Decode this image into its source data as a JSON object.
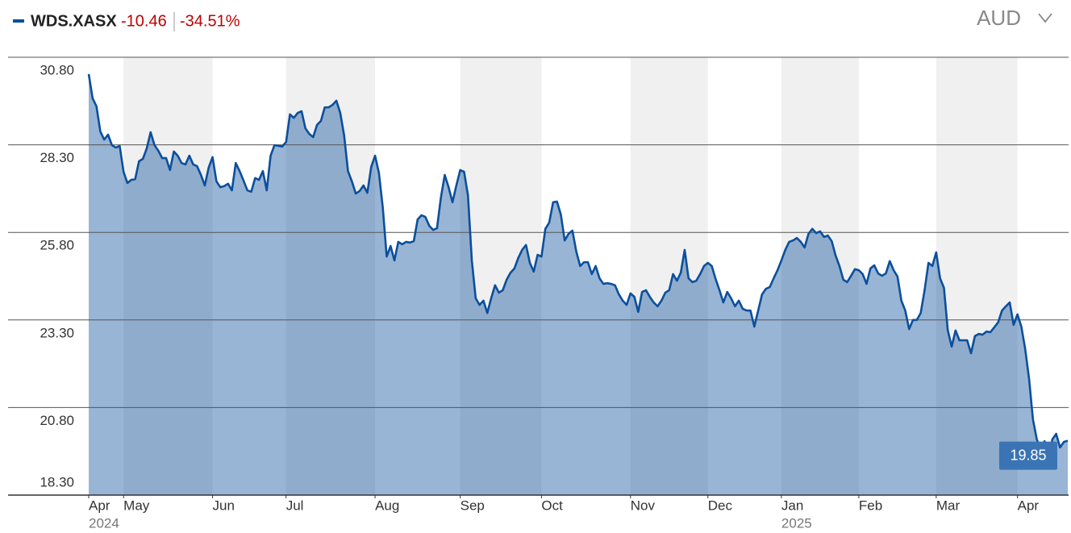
{
  "header": {
    "ticker": "WDS.XASX",
    "change": "-10.46",
    "change_pct": "-34.51%",
    "currency": "AUD"
  },
  "chart_data": {
    "type": "area",
    "color": "#0b4f9c",
    "grid": true,
    "ylim": [
      18.3,
      30.8
    ],
    "yticks": [
      {
        "value": 18.3,
        "label": "18.30"
      },
      {
        "value": 20.8,
        "label": "20.80"
      },
      {
        "value": 23.3,
        "label": "23.30"
      },
      {
        "value": 25.8,
        "label": "25.80"
      },
      {
        "value": 28.3,
        "label": "28.30"
      },
      {
        "value": 30.8,
        "label": "30.80"
      }
    ],
    "categories": [
      "Apr",
      null,
      null,
      null,
      null,
      null,
      null,
      null,
      null,
      "May",
      null,
      null,
      null,
      null,
      null,
      null,
      null,
      null,
      null,
      null,
      null,
      null,
      null,
      null,
      null,
      null,
      null,
      null,
      null,
      null,
      null,
      null,
      "Jun",
      null,
      null,
      null,
      null,
      null,
      null,
      null,
      null,
      null,
      null,
      null,
      null,
      null,
      null,
      null,
      null,
      null,
      null,
      "Jul",
      null,
      null,
      null,
      null,
      null,
      null,
      null,
      null,
      null,
      null,
      null,
      null,
      null,
      null,
      null,
      null,
      null,
      null,
      null,
      null,
      null,
      null,
      "Aug",
      null,
      null,
      null,
      null,
      null,
      null,
      null,
      null,
      null,
      null,
      null,
      null,
      null,
      null,
      null,
      null,
      null,
      null,
      null,
      null,
      null,
      "Sep",
      null,
      null,
      null,
      null,
      null,
      null,
      null,
      null,
      null,
      null,
      null,
      null,
      null,
      null,
      null,
      null,
      null,
      null,
      null,
      null,
      "Oct",
      null,
      null,
      null,
      null,
      null,
      null,
      null,
      null,
      null,
      null,
      null,
      null,
      null,
      null,
      null,
      null,
      null,
      null,
      null,
      null,
      null,
      null,
      "Nov",
      null,
      null,
      null,
      null,
      null,
      null,
      null,
      null,
      null,
      null,
      null,
      null,
      null,
      null,
      null,
      null,
      null,
      null,
      null,
      "Dec",
      null,
      null,
      null,
      null,
      null,
      null,
      null,
      null,
      null,
      null,
      null,
      null,
      null,
      null,
      null,
      null,
      null,
      null,
      "Jan",
      null,
      null,
      null,
      null,
      null,
      null,
      null,
      null,
      null,
      null,
      null,
      null,
      null,
      null,
      null,
      null,
      null,
      null,
      null,
      "Feb",
      null,
      null,
      null,
      null,
      null,
      null,
      null,
      null,
      null,
      null,
      null,
      null,
      null,
      null,
      null,
      null,
      null,
      null,
      null,
      "Mar",
      null,
      null,
      null,
      null,
      null,
      null,
      null,
      null,
      null,
      null,
      null,
      null,
      null,
      null,
      null,
      null,
      null,
      null,
      null,
      null,
      "Apr",
      null,
      null,
      null,
      null,
      null,
      null,
      null,
      null,
      null,
      null,
      null,
      null,
      null
    ],
    "years": [
      "2024",
      null,
      null,
      null,
      null,
      null,
      null,
      null,
      null,
      null,
      null,
      null,
      null,
      null,
      null,
      null,
      null,
      null,
      null,
      null,
      null,
      null,
      null,
      null,
      null,
      null,
      null,
      null,
      null,
      null,
      null,
      null,
      null,
      null,
      null,
      null,
      null,
      null,
      null,
      null,
      null,
      null,
      null,
      null,
      null,
      null,
      null,
      null,
      null,
      null,
      null,
      null,
      null,
      null,
      null,
      null,
      null,
      null,
      null,
      null,
      null,
      null,
      null,
      null,
      null,
      null,
      null,
      null,
      null,
      null,
      null,
      null,
      null,
      null,
      null,
      null,
      null,
      null,
      null,
      null,
      null,
      null,
      null,
      null,
      null,
      null,
      null,
      null,
      null,
      null,
      null,
      null,
      null,
      null,
      null,
      null,
      null,
      null,
      null,
      null,
      null,
      null,
      null,
      null,
      null,
      null,
      null,
      null,
      null,
      null,
      null,
      null,
      null,
      null,
      null,
      null,
      null,
      null,
      null,
      null,
      null,
      null,
      null,
      null,
      null,
      null,
      null,
      null,
      null,
      null,
      null,
      null,
      null,
      null,
      null,
      null,
      null,
      null,
      null,
      null,
      null,
      null,
      null,
      null,
      null,
      null,
      null,
      null,
      null,
      null,
      null,
      null,
      null,
      null,
      null,
      null,
      null,
      null,
      null,
      null,
      null,
      null,
      null,
      null,
      null,
      null,
      null,
      null,
      null,
      null,
      null,
      null,
      null,
      null,
      null,
      null,
      null,
      null,
      null,
      "2025",
      null,
      null,
      null,
      null,
      null,
      null,
      null,
      null,
      null,
      null,
      null,
      null,
      null,
      null,
      null,
      null,
      null,
      null,
      null,
      null,
      null,
      null,
      null,
      null,
      null,
      null,
      null,
      null,
      null,
      null,
      null,
      null,
      null,
      null,
      null,
      null,
      null,
      null,
      null,
      null,
      null,
      null,
      null,
      null,
      null,
      null,
      null,
      null,
      null,
      null,
      null,
      null,
      null,
      null,
      null,
      null,
      null,
      null,
      null,
      null,
      null,
      null,
      null,
      null,
      null,
      null,
      null,
      null,
      null,
      null,
      null,
      null,
      null,
      null
    ],
    "values": [
      30.32,
      29.63,
      29.4,
      28.68,
      28.45,
      28.59,
      28.29,
      28.22,
      28.27,
      27.53,
      27.21,
      27.3,
      27.32,
      27.83,
      27.9,
      28.2,
      28.66,
      28.29,
      28.13,
      27.92,
      27.92,
      27.58,
      28.11,
      27.99,
      27.78,
      27.74,
      27.99,
      27.74,
      27.69,
      27.44,
      27.14,
      27.65,
      27.95,
      27.26,
      27.09,
      27.12,
      27.19,
      27.0,
      27.78,
      27.55,
      27.28,
      27.0,
      26.96,
      27.35,
      27.3,
      27.55,
      27.0,
      27.99,
      28.29,
      28.27,
      28.25,
      28.38,
      29.17,
      29.07,
      29.21,
      29.26,
      28.77,
      28.61,
      28.52,
      28.87,
      28.98,
      29.37,
      29.37,
      29.44,
      29.56,
      29.21,
      28.57,
      27.55,
      27.26,
      26.91,
      26.98,
      27.14,
      26.93,
      27.67,
      27.99,
      27.49,
      26.5,
      25.11,
      25.41,
      25.0,
      25.53,
      25.46,
      25.53,
      25.51,
      25.55,
      26.17,
      26.29,
      26.24,
      25.99,
      25.87,
      25.92,
      26.79,
      27.44,
      27.09,
      26.66,
      27.14,
      27.58,
      27.53,
      26.86,
      25.0,
      23.92,
      23.73,
      23.85,
      23.5,
      23.92,
      24.29,
      24.08,
      24.15,
      24.45,
      24.65,
      24.77,
      25.07,
      25.3,
      25.44,
      24.93,
      24.68,
      25.16,
      25.11,
      25.9,
      26.08,
      26.66,
      26.68,
      26.31,
      25.57,
      25.76,
      25.85,
      25.25,
      24.84,
      24.95,
      24.95,
      24.61,
      24.84,
      24.49,
      24.33,
      24.35,
      24.33,
      24.29,
      24.03,
      23.85,
      23.73,
      24.06,
      23.96,
      23.53,
      24.1,
      24.15,
      23.96,
      23.8,
      23.69,
      23.85,
      24.08,
      24.15,
      24.61,
      24.42,
      24.65,
      25.3,
      24.49,
      24.38,
      24.42,
      24.61,
      24.84,
      24.93,
      24.84,
      24.47,
      24.15,
      23.8,
      24.1,
      23.92,
      23.69,
      23.85,
      23.62,
      23.57,
      23.57,
      23.11,
      23.57,
      24.03,
      24.19,
      24.24,
      24.49,
      24.72,
      25.0,
      25.3,
      25.53,
      25.57,
      25.64,
      25.53,
      25.37,
      25.76,
      25.9,
      25.78,
      25.83,
      25.67,
      25.71,
      25.55,
      25.14,
      24.84,
      24.45,
      24.38,
      24.56,
      24.75,
      24.72,
      24.61,
      24.33,
      24.77,
      24.86,
      24.63,
      24.56,
      24.63,
      24.98,
      24.72,
      24.54,
      23.85,
      23.57,
      23.04,
      23.3,
      23.3,
      23.5,
      24.15,
      24.93,
      24.84,
      25.23,
      24.49,
      24.22,
      23.0,
      22.54,
      23.0,
      22.72,
      22.72,
      22.72,
      22.35,
      22.84,
      22.9,
      22.88,
      22.97,
      22.95,
      23.09,
      23.23,
      23.57,
      23.69,
      23.8,
      23.16,
      23.46,
      23.11,
      22.47,
      21.62,
      20.46,
      19.89,
      19.61,
      19.84,
      19.15,
      19.89,
      20.05,
      19.66,
      19.82,
      19.85
    ],
    "value_labels": [
      null,
      null,
      null,
      null,
      null,
      null,
      null,
      null,
      null,
      null,
      null,
      null,
      null,
      null,
      null,
      null,
      null,
      null,
      null,
      null,
      null,
      null,
      null,
      null,
      null,
      null,
      null,
      null,
      null,
      null,
      null,
      null,
      null,
      null,
      null,
      null,
      null,
      null,
      null,
      null,
      null,
      null,
      null,
      null,
      null,
      null,
      null,
      null,
      null,
      null,
      null,
      null,
      null,
      null,
      null,
      null,
      null,
      null,
      null,
      null,
      null,
      null,
      null,
      null,
      null,
      null,
      null,
      null,
      null,
      null,
      null,
      null,
      null,
      null,
      null,
      null,
      null,
      null,
      null,
      null,
      null,
      null,
      null,
      null,
      null,
      null,
      null,
      null,
      null,
      null,
      null,
      null,
      null,
      null,
      null,
      null,
      null,
      null,
      null,
      null,
      null,
      null,
      null,
      null,
      null,
      null,
      null,
      null,
      null,
      null,
      null,
      null,
      null,
      null,
      null,
      null,
      null,
      null,
      null,
      null,
      null,
      null,
      null,
      null,
      null,
      null,
      null,
      null,
      null,
      null,
      null,
      null,
      null,
      null,
      null,
      null,
      null,
      null,
      null,
      null,
      null,
      null,
      null,
      null,
      null,
      null,
      null,
      null,
      null,
      null,
      null,
      null,
      null,
      null,
      null,
      null,
      null,
      null,
      null,
      null,
      null,
      null,
      null,
      null,
      null,
      null,
      null,
      null,
      null,
      null,
      null,
      null,
      null,
      null,
      null,
      null,
      null,
      null,
      null,
      null,
      null,
      null,
      null,
      null,
      null,
      null,
      null,
      null,
      null,
      null,
      null,
      null,
      null,
      null,
      null,
      null,
      null,
      null,
      null,
      null,
      null,
      null,
      null,
      null,
      null,
      null,
      null,
      null,
      null,
      null,
      null,
      null,
      null,
      null,
      null,
      null,
      null,
      null,
      null,
      null,
      null,
      null,
      null,
      null,
      null,
      null,
      null,
      null,
      null,
      null,
      null,
      null,
      null,
      null,
      null,
      null,
      null,
      null,
      null,
      null,
      null,
      null,
      null,
      null,
      null,
      null,
      null,
      null,
      null,
      null,
      null,
      null,
      null,
      "19.85"
    ]
  }
}
